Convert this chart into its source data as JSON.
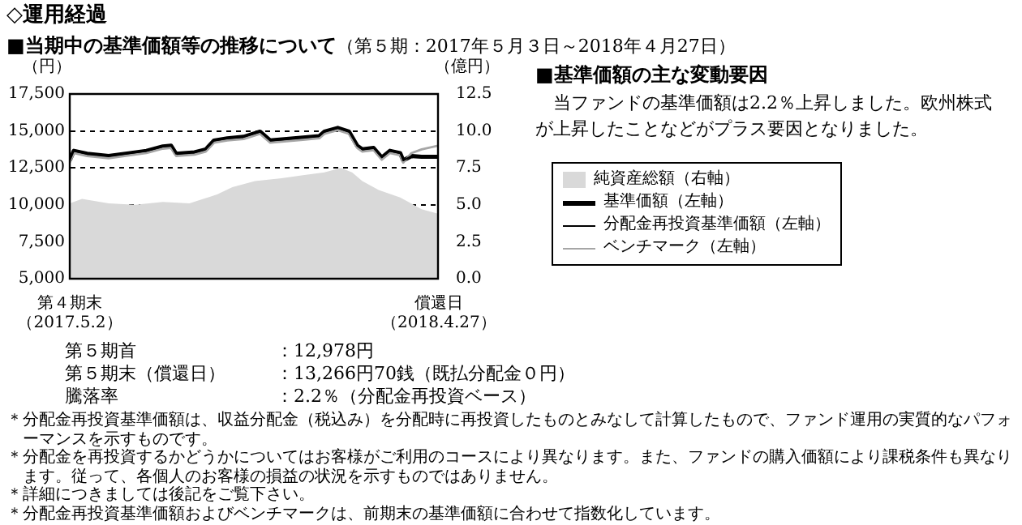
{
  "chart_data": {
    "type": "line",
    "title": "■当期中の基準価額等の推移について",
    "subtitle": "（第５期：2017年５月３日～2018年４月27日）",
    "ylabel": "（円）",
    "y2label": "（億円）",
    "x": [
      "2017-05-02",
      "2017-05-06",
      "2017-05-19",
      "2017-06-09",
      "2017-06-30",
      "2017-07-16",
      "2017-08-01",
      "2017-08-09",
      "2017-08-14",
      "2017-09-01",
      "2017-09-12",
      "2017-09-20",
      "2017-10-03",
      "2017-10-19",
      "2017-11-04",
      "2017-11-14",
      "2017-11-30",
      "2017-12-16",
      "2018-01-01",
      "2018-01-06",
      "2018-01-19",
      "2018-01-30",
      "2018-02-07",
      "2018-02-12",
      "2018-02-23",
      "2018-03-03",
      "2018-03-11",
      "2018-03-21",
      "2018-03-24",
      "2018-04-01",
      "2018-04-11",
      "2018-04-27"
    ],
    "series": [
      {
        "name": "純資産総額（右軸）",
        "type": "area",
        "axis": "y2",
        "color": "#d9d9d9",
        "x": [
          "2017-05-02",
          "2017-05-14",
          "2017-06-09",
          "2017-07-05",
          "2017-08-01",
          "2017-08-27",
          "2017-09-23",
          "2017-10-08",
          "2017-10-30",
          "2017-11-25",
          "2017-12-16",
          "2018-01-06",
          "2018-01-22",
          "2018-02-02",
          "2018-02-12",
          "2018-02-28",
          "2018-03-21",
          "2018-04-11",
          "2018-04-27"
        ],
        "values": [
          5.1,
          5.4,
          5.1,
          5.0,
          5.2,
          5.1,
          5.7,
          6.2,
          6.6,
          6.8,
          7.0,
          7.2,
          7.5,
          7.2,
          6.6,
          6.0,
          5.5,
          4.7,
          4.4
        ]
      },
      {
        "name": "基準価額（左軸）",
        "type": "line",
        "color": "#000000",
        "values": [
          13000,
          13650,
          13450,
          13300,
          13500,
          13650,
          13950,
          14000,
          13450,
          13550,
          13750,
          14350,
          14500,
          14600,
          14950,
          14350,
          14450,
          14550,
          14650,
          14950,
          15200,
          14950,
          14000,
          13750,
          13850,
          13200,
          13650,
          13500,
          13000,
          13300,
          13250,
          13250
        ]
      },
      {
        "name": "分配金再投資基準価額（左軸）",
        "type": "line",
        "color": "#000000",
        "values": [
          13000,
          13650,
          13450,
          13300,
          13500,
          13650,
          13950,
          14000,
          13450,
          13550,
          13750,
          14350,
          14500,
          14600,
          14950,
          14350,
          14450,
          14550,
          14650,
          14950,
          15200,
          14950,
          14000,
          13750,
          13850,
          13200,
          13650,
          13500,
          13000,
          13300,
          13250,
          13250
        ]
      },
      {
        "name": "ベンチマーク（左軸）",
        "type": "line",
        "color": "#a6a6a6",
        "values": [
          12850,
          13500,
          13300,
          13150,
          13350,
          13500,
          13800,
          13850,
          13300,
          13400,
          13600,
          14200,
          14350,
          14450,
          14800,
          14200,
          14300,
          14400,
          14500,
          14800,
          15050,
          14800,
          13850,
          13600,
          13700,
          13050,
          13500,
          13350,
          12850,
          13500,
          13750,
          14000
        ]
      }
    ],
    "xlim": [
      "2017-05-02",
      "2018-04-27"
    ],
    "xticks": [
      {
        "value": "2017-05-02",
        "label": "第４期末（2017.5.2）"
      },
      {
        "value": "2018-04-27",
        "label": "償還日（2018.4.27）"
      }
    ],
    "ylim": [
      5000,
      17500
    ],
    "yticks": [
      {
        "value": 5000,
        "label": "5,000"
      },
      {
        "value": 7500,
        "label": "7,500"
      },
      {
        "value": 10000,
        "label": "10,000"
      },
      {
        "value": 12500,
        "label": "12,500"
      },
      {
        "value": 15000,
        "label": "15,000"
      },
      {
        "value": 17500,
        "label": "17,500"
      }
    ],
    "y2lim": [
      0,
      12.5
    ],
    "y2ticks": [
      {
        "value": 0,
        "label": "0.0"
      },
      2.5,
      {
        "value": 5,
        "label": "5.0"
      },
      7.5,
      {
        "value": 10,
        "label": "10.0"
      },
      12.5
    ],
    "grid": "y",
    "legend": "right",
    "marker": "none",
    "line_style": "solid",
    "annotations": [
      "◇運用経過",
      "■基準価額の主な変動要因",
      "当ファンドの基準価額は2.2％上昇しました。欧州株式が上昇したことなどがプラス要因となりました。",
      "第５期首",
      "：12,978円",
      "第５期末（償還日）",
      "：13,266円70銭（既払分配金０円）",
      "騰落率",
      "：2.2％（分配金再投資ベース）",
      "＊分配金再投資基準価額は、収益分配金（税込み）を分配時に再投資したものとみなして計算したもので、ファンド運用の実質的なパフォーマンスを示すものです。",
      "＊分配金を再投資するかどうかについてはお客様がご利用のコースにより異なります。また、ファンドの購入価額により課税条件も異なります。従って、各個人のお客様の損益の状況を示すものではありません。",
      "＊詳細につきましては後記をご覧下さい。",
      "＊分配金再投資基準価額およびベンチマークは、前期末の基準価額に合わせて指数化しています。"
    ]
  }
}
